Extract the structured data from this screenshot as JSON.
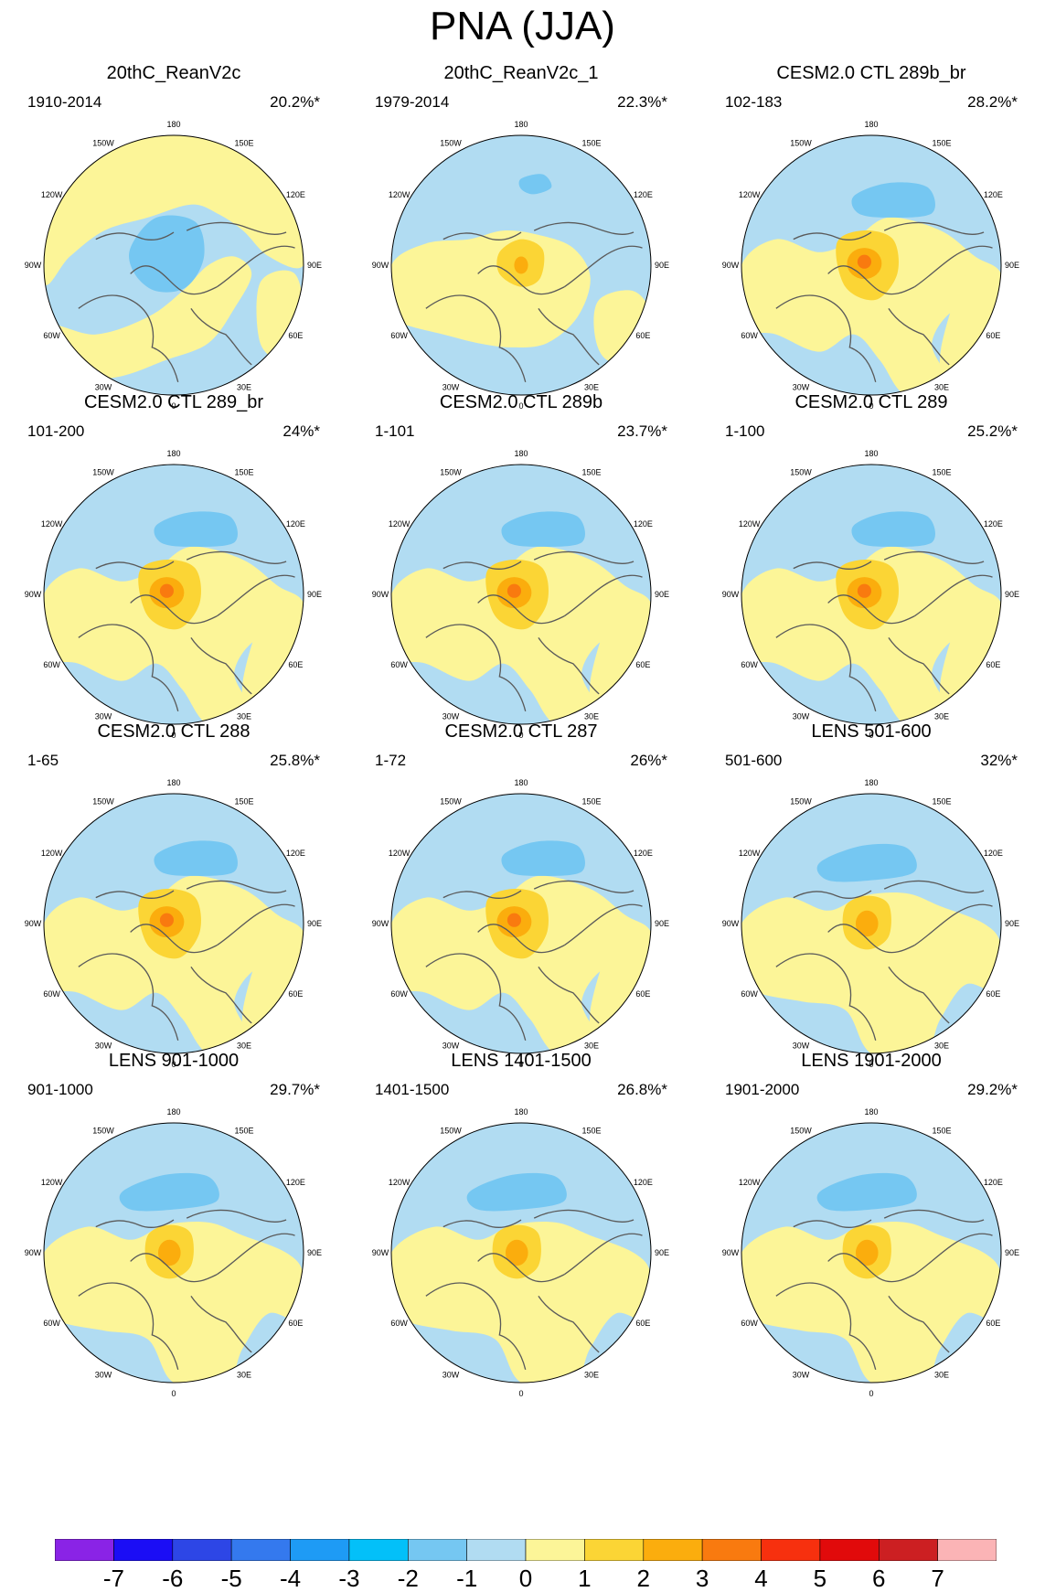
{
  "title": "PNA (JJA)",
  "longitude_labels": [
    "180",
    "150E",
    "120E",
    "90E",
    "60E",
    "30E",
    "0",
    "30W",
    "60W",
    "90W",
    "120W",
    "150W"
  ],
  "panels": [
    {
      "title": "20thC_ReanV2c",
      "period": "1910-2014",
      "variance_explained": "20.2%*",
      "pattern": "rean"
    },
    {
      "title": "20thC_ReanV2c_1",
      "period": "1979-2014",
      "variance_explained": "22.3%*",
      "pattern": "rean1"
    },
    {
      "title": "CESM2.0 CTL 289b_br",
      "period": "102-183",
      "variance_explained": "28.2%*",
      "pattern": "model"
    },
    {
      "title": "CESM2.0 CTL 289_br",
      "period": "101-200",
      "variance_explained": "24%*",
      "pattern": "model"
    },
    {
      "title": "CESM2.0 CTL 289b",
      "period": "1-101",
      "variance_explained": "23.7%*",
      "pattern": "model"
    },
    {
      "title": "CESM2.0 CTL 289",
      "period": "1-100",
      "variance_explained": "25.2%*",
      "pattern": "model"
    },
    {
      "title": "CESM2.0 CTL 288",
      "period": "1-65",
      "variance_explained": "25.8%*",
      "pattern": "model"
    },
    {
      "title": "CESM2.0 CTL 287",
      "period": "1-72",
      "variance_explained": "26%*",
      "pattern": "model"
    },
    {
      "title": "LENS 501-600",
      "period": "501-600",
      "variance_explained": "32%*",
      "pattern": "lens"
    },
    {
      "title": "LENS 901-1000",
      "period": "901-1000",
      "variance_explained": "29.7%*",
      "pattern": "lens"
    },
    {
      "title": "LENS 1401-1500",
      "period": "1401-1500",
      "variance_explained": "26.8%*",
      "pattern": "lens"
    },
    {
      "title": "LENS 1901-2000",
      "period": "1901-2000",
      "variance_explained": "29.2%*",
      "pattern": "lens"
    }
  ],
  "colorbar": {
    "labels": [
      "-7",
      "-6",
      "-5",
      "-4",
      "-3",
      "-2",
      "-1",
      "0",
      "1",
      "2",
      "3",
      "4",
      "5",
      "6",
      "7"
    ],
    "colors": [
      "#8a23e6",
      "#1b0df5",
      "#2d46e6",
      "#3479ee",
      "#1e9bf5",
      "#03c0f9",
      "#75c7f2",
      "#b1dcf2",
      "#fcf598",
      "#fbd535",
      "#fbad0d",
      "#f97a0f",
      "#f7300e",
      "#e10a0b",
      "#cc1f22",
      "#fbb4b6"
    ]
  },
  "colors": {
    "coast": "#5a5a5a"
  }
}
